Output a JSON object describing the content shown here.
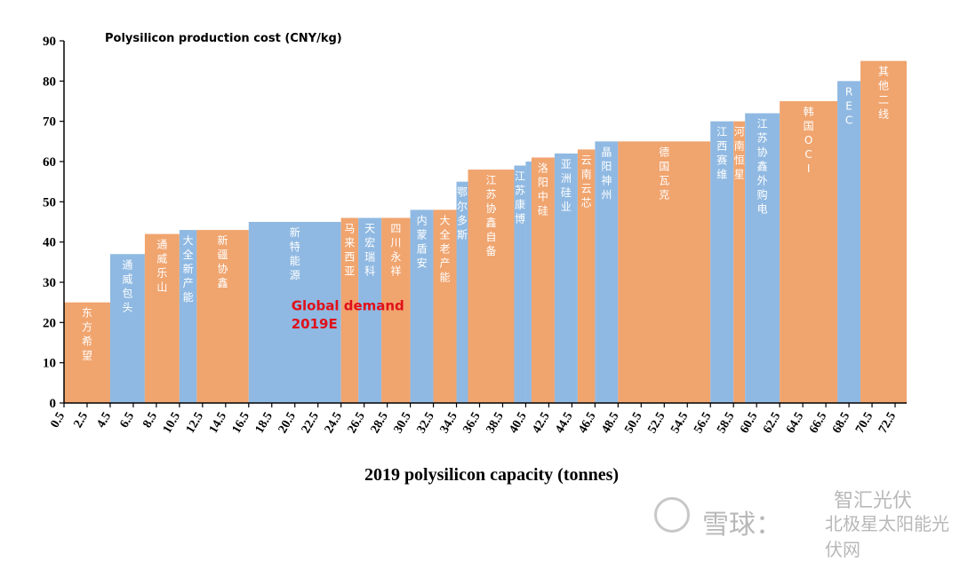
{
  "chart_data": {
    "type": "bar",
    "title": "Polysilicon production cost (CNY/kg)",
    "xlabel": "2019 polysilicon capacity (tonnes)",
    "ylabel": "",
    "ylim": [
      0,
      90
    ],
    "xlim": [
      0.5,
      73.5
    ],
    "yticks": [
      "0",
      "10",
      "20",
      "30",
      "40",
      "50",
      "60",
      "70",
      "80",
      "90"
    ],
    "xticks": [
      "0.5",
      "2.5",
      "4.5",
      "6.5",
      "8.5",
      "10.5",
      "12.5",
      "14.5",
      "16.5",
      "18.5",
      "20.5",
      "22.5",
      "24.5",
      "26.5",
      "28.5",
      "30.5",
      "32.5",
      "34.5",
      "36.5",
      "38.5",
      "40.5",
      "42.5",
      "44.5",
      "46.5",
      "48.5",
      "50.5",
      "52.5",
      "54.5",
      "56.5",
      "58.5",
      "60.5",
      "62.5",
      "64.5",
      "66.5",
      "68.5",
      "70.5",
      "72.5"
    ],
    "grid": false,
    "colors": {
      "orange": "#f0a46e",
      "blue": "#8fb9e2"
    },
    "bars": [
      {
        "label": "东方希望",
        "x_start": 0.5,
        "x_end": 4.5,
        "value": 25,
        "color": "orange"
      },
      {
        "label": "通威包头",
        "x_start": 4.5,
        "x_end": 7.5,
        "value": 37,
        "color": "blue"
      },
      {
        "label": "通威乐山",
        "x_start": 7.5,
        "x_end": 10.5,
        "value": 42,
        "color": "orange"
      },
      {
        "label": "大全新产能",
        "x_start": 10.5,
        "x_end": 12.0,
        "value": 43,
        "color": "blue"
      },
      {
        "label": "新疆协鑫",
        "x_start": 12.0,
        "x_end": 16.5,
        "value": 43,
        "color": "orange"
      },
      {
        "label": "新特能源",
        "x_start": 16.5,
        "x_end": 24.5,
        "value": 45,
        "color": "blue"
      },
      {
        "label": "马来西亚",
        "x_start": 24.5,
        "x_end": 26.0,
        "value": 46,
        "color": "orange"
      },
      {
        "label": "天宏瑞科",
        "x_start": 26.0,
        "x_end": 28.0,
        "value": 46,
        "color": "blue"
      },
      {
        "label": "四川永祥",
        "x_start": 28.0,
        "x_end": 30.5,
        "value": 46,
        "color": "orange"
      },
      {
        "label": "内蒙盾安",
        "x_start": 30.5,
        "x_end": 32.5,
        "value": 48,
        "color": "blue"
      },
      {
        "label": "大全老产能",
        "x_start": 32.5,
        "x_end": 34.5,
        "value": 48,
        "color": "orange"
      },
      {
        "label": "鄂尔多斯",
        "x_start": 34.5,
        "x_end": 35.5,
        "value": 55,
        "color": "blue"
      },
      {
        "label": "江苏协鑫自备",
        "x_start": 35.5,
        "x_end": 39.5,
        "value": 58,
        "color": "orange"
      },
      {
        "label": "江苏康博",
        "x_start": 39.5,
        "x_end": 40.5,
        "value": 59,
        "color": "blue"
      },
      {
        "label": "",
        "x_start": 40.5,
        "x_end": 41.0,
        "value": 60,
        "color": "blue"
      },
      {
        "label": "洛阳中硅",
        "x_start": 41.0,
        "x_end": 43.0,
        "value": 61,
        "color": "orange"
      },
      {
        "label": "亚洲硅业",
        "x_start": 43.0,
        "x_end": 45.0,
        "value": 62,
        "color": "blue"
      },
      {
        "label": "云南云芯",
        "x_start": 45.0,
        "x_end": 46.5,
        "value": 63,
        "color": "orange"
      },
      {
        "label": "晶阳神州",
        "x_start": 46.5,
        "x_end": 48.5,
        "value": 65,
        "color": "blue"
      },
      {
        "label": "德国瓦克",
        "x_start": 48.5,
        "x_end": 56.5,
        "value": 65,
        "color": "orange"
      },
      {
        "label": "江西赛维",
        "x_start": 56.5,
        "x_end": 58.5,
        "value": 70,
        "color": "blue"
      },
      {
        "label": "河南恒星",
        "x_start": 58.5,
        "x_end": 59.5,
        "value": 70,
        "color": "orange"
      },
      {
        "label": "江苏协鑫外购电",
        "x_start": 59.5,
        "x_end": 62.5,
        "value": 72,
        "color": "blue"
      },
      {
        "label": "韩国OCI",
        "x_start": 62.5,
        "x_end": 67.5,
        "value": 75,
        "color": "orange"
      },
      {
        "label": "REC",
        "x_start": 67.5,
        "x_end": 69.5,
        "value": 80,
        "color": "blue"
      },
      {
        "label": "其他二线",
        "x_start": 69.5,
        "x_end": 73.5,
        "value": 85,
        "color": "orange"
      }
    ],
    "annotations": [
      {
        "text": "Global demand",
        "x": 20.5,
        "y": 23
      },
      {
        "text": "2019E",
        "x": 20.5,
        "y": 18.5
      }
    ]
  },
  "watermark": {
    "text_1": "智汇光伏",
    "text_2": "雪球：",
    "text_3": "北极星太阳能光伏网"
  }
}
